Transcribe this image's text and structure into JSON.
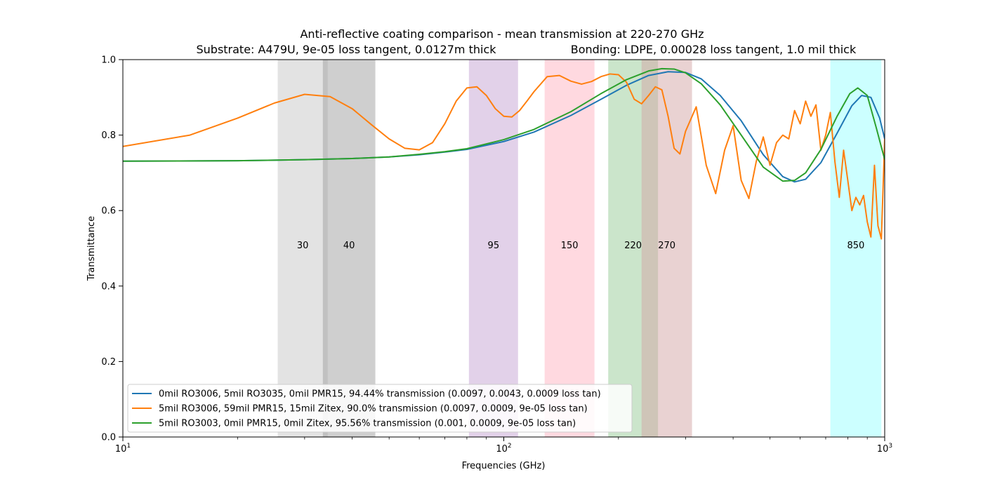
{
  "chart_data": {
    "type": "line",
    "title": "Anti-reflective coating comparison - mean transmission at 220-270 GHz",
    "subtitle_left": "Substrate: A479U, 9e-05 loss tangent, 0.0127m thick",
    "subtitle_right": "Bonding: LDPE, 0.00028 loss tangent, 1.0 mil thick",
    "xlabel": "Frequencies (GHz)",
    "ylabel": "Transmittance",
    "xscale": "log",
    "xlim": [
      10,
      1000
    ],
    "ylim": [
      0,
      1.0
    ],
    "x_major_ticks": [
      10,
      100,
      1000
    ],
    "x_tick_labels": [
      {
        "base": "10",
        "exp": "1"
      },
      {
        "base": "10",
        "exp": "2"
      },
      {
        "base": "10",
        "exp": "3"
      }
    ],
    "y_ticks": [
      0.0,
      0.2,
      0.4,
      0.6,
      0.8,
      1.0
    ],
    "y_tick_labels": [
      "0.0",
      "0.2",
      "0.4",
      "0.6",
      "0.8",
      "1.0"
    ],
    "grid": false,
    "legend_position": "lower-left",
    "bands": [
      {
        "label": "30",
        "range": [
          25.5,
          34.5
        ],
        "color": "#c8c8c8"
      },
      {
        "label": "40",
        "range": [
          33.5,
          46.0
        ],
        "color": "#a0a0a0"
      },
      {
        "label": "95",
        "range": [
          81,
          109
        ],
        "color": "#c5a3d3"
      },
      {
        "label": "150",
        "range": [
          128,
          173
        ],
        "color": "#ffb3c1"
      },
      {
        "label": "220",
        "range": [
          188,
          254
        ],
        "color": "#98cc98"
      },
      {
        "label": "270",
        "range": [
          230,
          312
        ],
        "color": "#d4a6a6"
      },
      {
        "label": "850",
        "range": [
          720,
          980
        ],
        "color": "#99ffff"
      }
    ],
    "series": [
      {
        "name": "0mil RO3006, 5mil RO3035, 0mil PMR15, 94.44% transmission (0.0097, 0.0043, 0.0009 loss tan)",
        "color": "#1f77b4",
        "x": [
          10,
          20,
          30,
          40,
          50,
          60,
          70,
          80,
          100,
          120,
          150,
          180,
          210,
          240,
          270,
          300,
          330,
          370,
          420,
          480,
          540,
          580,
          620,
          680,
          750,
          820,
          870,
          920,
          970,
          1000
        ],
        "y": [
          0.731,
          0.732,
          0.735,
          0.738,
          0.742,
          0.748,
          0.755,
          0.762,
          0.783,
          0.808,
          0.852,
          0.895,
          0.932,
          0.958,
          0.968,
          0.966,
          0.949,
          0.905,
          0.838,
          0.748,
          0.69,
          0.676,
          0.683,
          0.727,
          0.805,
          0.878,
          0.905,
          0.9,
          0.845,
          0.79
        ]
      },
      {
        "name": "5mil RO3006, 59mil PMR15, 15mil Zitex, 90.0% transmission (0.0097, 0.0009, 9e-05 loss tan)",
        "color": "#ff7f0e",
        "x": [
          10,
          15,
          20,
          25,
          30,
          35,
          40,
          45,
          50,
          55,
          60,
          65,
          70,
          75,
          80,
          85,
          90,
          95,
          100,
          105,
          110,
          115,
          120,
          130,
          140,
          150,
          160,
          170,
          180,
          190,
          200,
          210,
          220,
          230,
          240,
          250,
          260,
          270,
          280,
          290,
          300,
          320,
          340,
          360,
          380,
          400,
          420,
          440,
          460,
          480,
          500,
          520,
          540,
          560,
          580,
          600,
          620,
          640,
          660,
          680,
          700,
          720,
          740,
          760,
          780,
          800,
          820,
          840,
          860,
          880,
          900,
          920,
          940,
          960,
          980,
          1000
        ],
        "y": [
          0.77,
          0.8,
          0.845,
          0.885,
          0.908,
          0.902,
          0.87,
          0.827,
          0.79,
          0.765,
          0.761,
          0.78,
          0.83,
          0.89,
          0.925,
          0.928,
          0.905,
          0.87,
          0.85,
          0.848,
          0.865,
          0.89,
          0.915,
          0.955,
          0.958,
          0.943,
          0.935,
          0.942,
          0.955,
          0.962,
          0.96,
          0.94,
          0.895,
          0.883,
          0.905,
          0.928,
          0.92,
          0.85,
          0.765,
          0.75,
          0.81,
          0.875,
          0.72,
          0.645,
          0.76,
          0.825,
          0.68,
          0.632,
          0.73,
          0.795,
          0.72,
          0.78,
          0.8,
          0.79,
          0.865,
          0.83,
          0.89,
          0.85,
          0.88,
          0.76,
          0.8,
          0.86,
          0.73,
          0.635,
          0.76,
          0.68,
          0.6,
          0.635,
          0.615,
          0.64,
          0.57,
          0.53,
          0.72,
          0.56,
          0.525,
          0.79
        ]
      },
      {
        "name": "5mil RO3003, 0mil PMR15, 0mil Zitex, 95.56% transmission (0.001, 0.0009, 9e-05 loss tan)",
        "color": "#2ca02c",
        "x": [
          10,
          20,
          30,
          40,
          50,
          60,
          70,
          80,
          100,
          120,
          150,
          180,
          210,
          240,
          260,
          280,
          300,
          330,
          370,
          420,
          480,
          540,
          580,
          620,
          680,
          750,
          810,
          850,
          900,
          950,
          1000
        ],
        "y": [
          0.731,
          0.732,
          0.735,
          0.738,
          0.742,
          0.749,
          0.756,
          0.764,
          0.788,
          0.815,
          0.862,
          0.91,
          0.947,
          0.97,
          0.976,
          0.975,
          0.965,
          0.936,
          0.88,
          0.8,
          0.715,
          0.678,
          0.68,
          0.7,
          0.762,
          0.85,
          0.91,
          0.925,
          0.905,
          0.82,
          0.735
        ]
      }
    ]
  }
}
